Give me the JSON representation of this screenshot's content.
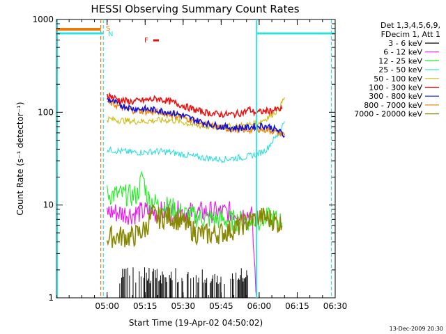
{
  "chart_data": {
    "type": "line",
    "title": "HESSI Observing Summary Count Rates",
    "xlabel": "Start Time (19-Apr-02 04:50:02)",
    "ylabel": "Count Rate (s⁻¹ detector⁻¹)",
    "y_scale": "log",
    "xlim_minutes": [
      -10,
      100
    ],
    "ylim": [
      1,
      1000
    ],
    "x_ticks": [
      "05:00",
      "05:15",
      "05:30",
      "05:45",
      "06:00",
      "06:15",
      "06:30"
    ],
    "y_ticks": [
      "1",
      "10",
      "100",
      "1000"
    ],
    "legend_header": [
      "Det 1,3,4,5,6,9,",
      "FDecim 1, Att 1"
    ],
    "legend_position": "right",
    "footer": "13-Dec-2009 20:30",
    "flags": [
      {
        "label": "S",
        "color": "#e87a10"
      },
      {
        "label": "N",
        "color": "#33dddd"
      },
      {
        "label": "F",
        "color": "#dd1111"
      }
    ],
    "series": [
      {
        "name": "3 - 6 keV",
        "color": "#000000",
        "points": [
          [
            15,
            1.8
          ],
          [
            20,
            1.9
          ],
          [
            25,
            1.8
          ],
          [
            30,
            1.9
          ],
          [
            35,
            1.8
          ],
          [
            40,
            1.7
          ],
          [
            48,
            1.5
          ],
          [
            55,
            1.4
          ],
          [
            62,
            1.5
          ],
          [
            66,
            1.3
          ]
        ]
      },
      {
        "name": "6 - 12 keV",
        "color": "#ee11ee",
        "points": [
          [
            10,
            8.5
          ],
          [
            15,
            8.2
          ],
          [
            20,
            8.0
          ],
          [
            25,
            8.5
          ],
          [
            30,
            8.3
          ],
          [
            35,
            8.6
          ],
          [
            40,
            8.4
          ],
          [
            45,
            8.2
          ],
          [
            50,
            8.5
          ],
          [
            55,
            8.3
          ],
          [
            60,
            8.4
          ],
          [
            63,
            8.0
          ],
          [
            67,
            8.0
          ],
          [
            69,
            1.0
          ]
        ]
      },
      {
        "name": "12 - 25 keV",
        "color": "#22ee22",
        "points": [
          [
            10,
            13
          ],
          [
            15,
            13
          ],
          [
            20,
            12.5
          ],
          [
            22,
            13
          ],
          [
            24,
            21
          ],
          [
            26,
            12
          ],
          [
            30,
            10
          ],
          [
            35,
            9.5
          ],
          [
            40,
            8
          ],
          [
            45,
            7.5
          ],
          [
            50,
            7.2
          ],
          [
            55,
            7.0
          ],
          [
            60,
            6.8
          ],
          [
            65,
            6.8
          ],
          [
            70,
            7.0
          ],
          [
            75,
            7.2
          ],
          [
            79,
            6.5
          ]
        ]
      },
      {
        "name": "25 - 50 keV",
        "color": "#33dddd",
        "points": [
          [
            10,
            40
          ],
          [
            15,
            38
          ],
          [
            20,
            37
          ],
          [
            25,
            37
          ],
          [
            30,
            38
          ],
          [
            35,
            37
          ],
          [
            40,
            35
          ],
          [
            45,
            33
          ],
          [
            50,
            32
          ],
          [
            55,
            31
          ],
          [
            60,
            32
          ],
          [
            65,
            33
          ],
          [
            70,
            36
          ],
          [
            73,
            40
          ],
          [
            75,
            48
          ],
          [
            78,
            60
          ],
          [
            80,
            80
          ]
        ]
      },
      {
        "name": "50 - 100 keV",
        "color": "#ccbb11",
        "points": [
          [
            10,
            85
          ],
          [
            15,
            82
          ],
          [
            20,
            80
          ],
          [
            25,
            80
          ],
          [
            30,
            82
          ],
          [
            35,
            82
          ],
          [
            40,
            78
          ],
          [
            45,
            72
          ],
          [
            50,
            70
          ],
          [
            55,
            70
          ],
          [
            60,
            70
          ],
          [
            65,
            73
          ],
          [
            70,
            78
          ],
          [
            74,
            90
          ],
          [
            78,
            110
          ],
          [
            80,
            145
          ]
        ]
      },
      {
        "name": "100 - 300 keV",
        "color": "#ee1111",
        "points": [
          [
            10,
            155
          ],
          [
            15,
            135
          ],
          [
            20,
            130
          ],
          [
            25,
            135
          ],
          [
            30,
            140
          ],
          [
            35,
            130
          ],
          [
            40,
            118
          ],
          [
            45,
            105
          ],
          [
            50,
            98
          ],
          [
            55,
            95
          ],
          [
            60,
            95
          ],
          [
            64,
            100
          ],
          [
            66,
            108
          ],
          [
            68,
            100
          ],
          [
            70,
            100
          ],
          [
            75,
            105
          ],
          [
            79,
            108
          ]
        ]
      },
      {
        "name": "300 - 800 keV",
        "color": "#1111dd",
        "points": [
          [
            10,
            140
          ],
          [
            15,
            120
          ],
          [
            20,
            110
          ],
          [
            25,
            108
          ],
          [
            30,
            105
          ],
          [
            35,
            100
          ],
          [
            40,
            92
          ],
          [
            45,
            82
          ],
          [
            50,
            75
          ],
          [
            55,
            70
          ],
          [
            60,
            68
          ],
          [
            65,
            68
          ],
          [
            70,
            72
          ],
          [
            74,
            70
          ],
          [
            78,
            62
          ],
          [
            80,
            56
          ]
        ]
      },
      {
        "name": "800 - 7000 keV",
        "color": "#ee8811",
        "points": [
          [
            10,
            130
          ],
          [
            15,
            115
          ],
          [
            20,
            105
          ],
          [
            25,
            102
          ],
          [
            30,
            100
          ],
          [
            35,
            95
          ],
          [
            40,
            88
          ],
          [
            45,
            80
          ],
          [
            50,
            72
          ],
          [
            55,
            68
          ],
          [
            60,
            65
          ],
          [
            65,
            64
          ],
          [
            70,
            66
          ],
          [
            74,
            64
          ],
          [
            78,
            60
          ],
          [
            80,
            57
          ]
        ]
      },
      {
        "name": "7000 - 20000 keV",
        "color": "#888800",
        "points": [
          [
            10,
            4.5
          ],
          [
            15,
            4.6
          ],
          [
            20,
            4.5
          ],
          [
            25,
            5.5
          ],
          [
            28,
            8
          ],
          [
            30,
            7.2
          ],
          [
            35,
            7.5
          ],
          [
            40,
            6.5
          ],
          [
            45,
            5
          ],
          [
            50,
            4.8
          ],
          [
            55,
            5
          ],
          [
            60,
            5.5
          ],
          [
            65,
            6.5
          ],
          [
            70,
            7.5
          ],
          [
            75,
            7.0
          ],
          [
            79,
            6.0
          ]
        ]
      }
    ]
  }
}
